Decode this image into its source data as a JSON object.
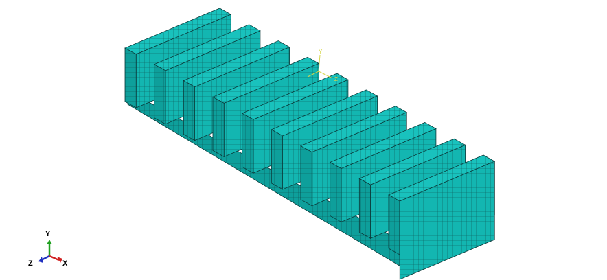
{
  "viewport": {
    "background": "#ffffff",
    "mesh_fill": "#13b6b1",
    "mesh_fill_light": "#19c2bd",
    "mesh_fill_dark": "#0e9f9b",
    "mesh_line": "#0b3a3a"
  },
  "model": {
    "fin_count": 10
  },
  "origin_triad": {
    "color": "#d6d64a",
    "labels": {
      "y": "Y",
      "z": "Z"
    }
  },
  "view_triad": {
    "labels": {
      "x": "X",
      "y": "Y",
      "z": "Z"
    },
    "colors": {
      "x": "#d02020",
      "y": "#20a020",
      "z": "#2030c0"
    }
  }
}
